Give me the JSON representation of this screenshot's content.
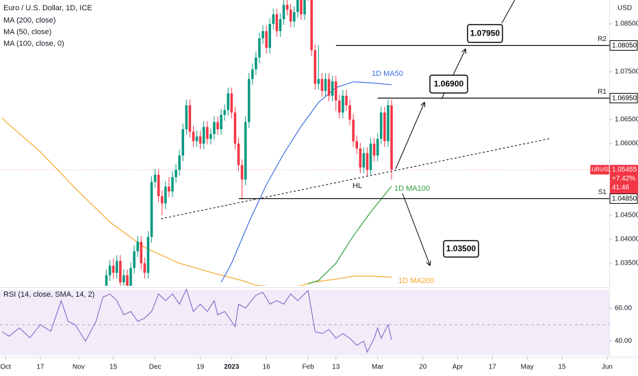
{
  "chart_data": [
    {
      "type": "candlestick",
      "title": "Euro / U.S. Dollar, 1D, ICE",
      "y_axis_label": "USD",
      "up_color": "#089981",
      "down_color": "#f23645",
      "x": [
        29,
        30,
        31,
        32,
        33,
        34,
        35,
        36,
        37,
        38,
        39,
        40,
        41,
        42,
        43,
        44,
        45,
        46,
        47,
        48,
        49,
        50,
        51,
        52,
        53,
        54,
        55,
        56,
        57,
        58,
        59,
        60,
        61,
        62,
        63,
        64,
        65,
        66,
        67,
        68,
        69,
        70,
        71,
        72,
        73,
        74,
        75,
        76,
        77,
        78,
        79,
        80,
        81,
        82,
        83,
        84,
        85,
        86,
        87,
        88,
        89,
        90,
        91,
        92,
        93,
        94,
        95,
        96,
        97,
        98,
        99,
        100,
        101,
        102,
        103,
        104,
        105,
        106,
        107,
        108,
        109,
        110,
        111
      ],
      "open": [
        1.03,
        1.0325,
        1.0345,
        1.033,
        1.0355,
        1.031,
        1.0325,
        1.03,
        1.034,
        1.0375,
        1.0395,
        1.035,
        1.033,
        1.0405,
        1.052,
        1.0535,
        1.049,
        1.0475,
        1.051,
        1.05,
        1.053,
        1.0545,
        1.0575,
        1.063,
        1.068,
        1.0625,
        1.0605,
        1.0615,
        1.06,
        1.0635,
        1.061,
        1.062,
        1.0645,
        1.063,
        1.066,
        1.067,
        1.0705,
        1.0665,
        1.06,
        1.0555,
        1.0525,
        1.0645,
        1.0735,
        1.0755,
        1.078,
        1.082,
        1.0835,
        1.08,
        1.085,
        1.087,
        1.0835,
        1.086,
        1.089,
        1.088,
        1.0855,
        1.0875,
        1.09,
        1.087,
        1.099,
        1.091,
        1.0795,
        1.0725,
        1.0735,
        1.071,
        1.0735,
        1.07,
        1.073,
        1.069,
        1.0665,
        1.07,
        1.068,
        1.065,
        1.0605,
        1.059,
        1.055,
        1.058,
        1.0545,
        1.06,
        1.0575,
        1.061,
        1.0665,
        1.0605,
        1.068
      ],
      "high": [
        1.0337,
        1.0357,
        1.036,
        1.0367,
        1.0367,
        1.0337,
        1.0337,
        1.0352,
        1.0387,
        1.0407,
        1.0407,
        1.0362,
        1.0417,
        1.0532,
        1.0547,
        1.0547,
        1.0502,
        1.0522,
        1.053,
        1.0542,
        1.0557,
        1.0587,
        1.0642,
        1.0692,
        1.0692,
        1.0637,
        1.0627,
        1.0627,
        1.0647,
        1.0647,
        1.0632,
        1.0657,
        1.0657,
        1.0672,
        1.0682,
        1.0717,
        1.0717,
        1.0677,
        1.0612,
        1.0567,
        1.0657,
        1.0747,
        1.0767,
        1.0792,
        1.0832,
        1.0847,
        1.0847,
        1.0862,
        1.0882,
        1.0882,
        1.0872,
        1.0902,
        1.0902,
        1.0892,
        1.0887,
        1.0912,
        1.0912,
        1.1002,
        1.103,
        1.0922,
        1.0807,
        1.0805,
        1.0747,
        1.0747,
        1.0747,
        1.0742,
        1.0742,
        1.0702,
        1.0712,
        1.0712,
        1.0692,
        1.0662,
        1.0617,
        1.0602,
        1.0592,
        1.0592,
        1.0612,
        1.0612,
        1.0622,
        1.0677,
        1.0677,
        1.0692,
        1.0692
      ],
      "low": [
        1.0288,
        1.0313,
        1.0318,
        1.0318,
        1.0298,
        1.0298,
        1.0288,
        1.0288,
        1.0328,
        1.0363,
        1.0338,
        1.0318,
        1.0318,
        1.0393,
        1.0508,
        1.0478,
        1.045,
        1.0463,
        1.0488,
        1.0488,
        1.0518,
        1.0533,
        1.0563,
        1.0618,
        1.0613,
        1.0593,
        1.0593,
        1.0588,
        1.0588,
        1.0598,
        1.0598,
        1.0608,
        1.0618,
        1.0618,
        1.0648,
        1.0658,
        1.0653,
        1.0588,
        1.0543,
        1.0483,
        1.0513,
        1.0633,
        1.0723,
        1.0743,
        1.0768,
        1.0808,
        1.0788,
        1.0788,
        1.0838,
        1.0823,
        1.0823,
        1.0848,
        1.0868,
        1.0843,
        1.0843,
        1.0863,
        1.0858,
        1.0858,
        1.0898,
        1.0783,
        1.0713,
        1.0713,
        1.0698,
        1.0698,
        1.0688,
        1.0688,
        1.0668,
        1.0653,
        1.0653,
        1.0668,
        1.0638,
        1.0593,
        1.0578,
        1.0538,
        1.0538,
        1.0533,
        1.0533,
        1.0563,
        1.0563,
        1.0598,
        1.0593,
        1.0593,
        1.0525
      ],
      "close": [
        1.0325,
        1.0345,
        1.033,
        1.0355,
        1.031,
        1.0325,
        1.03,
        1.034,
        1.0375,
        1.0395,
        1.035,
        1.033,
        1.0405,
        1.052,
        1.0535,
        1.049,
        1.0475,
        1.051,
        1.05,
        1.053,
        1.0545,
        1.0575,
        1.063,
        1.068,
        1.0625,
        1.0605,
        1.0615,
        1.06,
        1.0635,
        1.061,
        1.062,
        1.0645,
        1.063,
        1.066,
        1.067,
        1.0705,
        1.0665,
        1.06,
        1.0555,
        1.0525,
        1.0645,
        1.0735,
        1.0755,
        1.078,
        1.082,
        1.0835,
        1.08,
        1.085,
        1.087,
        1.0835,
        1.086,
        1.089,
        1.088,
        1.0855,
        1.0875,
        1.09,
        1.087,
        1.099,
        1.091,
        1.0795,
        1.0725,
        1.0735,
        1.071,
        1.0735,
        1.07,
        1.073,
        1.069,
        1.0665,
        1.07,
        1.068,
        1.065,
        1.0605,
        1.059,
        1.055,
        1.058,
        1.0545,
        1.06,
        1.0575,
        1.061,
        1.0665,
        1.0605,
        1.068,
        1.0546
      ],
      "moving_averages": [
        {
          "name": "MA (200, close)",
          "label": "1D MA200",
          "color": "#f5a623",
          "x": [
            -1,
            0,
            10,
            20,
            30,
            40,
            50,
            60,
            68,
            72,
            80,
            85,
            88,
            95,
            100,
            105,
            111
          ],
          "values": [
            1.0654,
            1.0646,
            1.0583,
            1.0507,
            1.0436,
            1.0383,
            1.035,
            1.0329,
            1.0314,
            1.0304,
            1.03,
            1.0303,
            1.031,
            1.0317,
            1.0323,
            1.0323,
            1.0321
          ]
        },
        {
          "name": "MA (50, close)",
          "label": "1D MA50",
          "color": "#3d6ee0",
          "x": [
            62,
            65,
            70,
            75,
            80,
            85,
            90,
            95,
            100,
            105,
            111
          ],
          "values": [
            1.031,
            1.035,
            1.0436,
            1.0514,
            1.0579,
            1.0636,
            1.0686,
            1.0717,
            1.0729,
            1.0727,
            1.0723
          ]
        },
        {
          "name": "MA (100, close, 0)",
          "label": "1D MA100",
          "color": "#2e9e3e",
          "x": [
            87,
            90,
            95,
            100,
            105,
            111
          ],
          "values": [
            1.0307,
            1.0314,
            1.035,
            1.0407,
            1.0457,
            1.0511
          ]
        }
      ],
      "levels": [
        {
          "name": "R2",
          "value": 1.0805,
          "label": "1.08050",
          "x_start": 95
        },
        {
          "name": "R1",
          "value": 1.0695,
          "label": "1.06950",
          "x_start": 107
        },
        {
          "name": "S1",
          "value": 1.0485,
          "label": "1.04850",
          "x_start": 67
        }
      ],
      "trendline": {
        "x": [
          44.7,
          156.9
        ],
        "values": [
          1.0443,
          1.0611
        ]
      },
      "current": {
        "symbol": "EURUSD",
        "value": 1.05455,
        "change": "+7.42%",
        "countdown": "41:46",
        "color": "#f23645"
      },
      "annotations": {
        "hl": "HL",
        "target_up_1": "1.06900",
        "target_up_2": "1.07950",
        "target_down": "1.03500"
      },
      "xlim": [
        -1.6,
        173.6
      ],
      "xticks": [
        {
          "value": 0,
          "label": "Oct"
        },
        {
          "value": 10,
          "label": "17"
        },
        {
          "value": 21,
          "label": "Nov"
        },
        {
          "value": 31,
          "label": "15"
        },
        {
          "value": 43,
          "label": "Dec"
        },
        {
          "value": 56,
          "label": "19"
        },
        {
          "value": 65,
          "label": "2023"
        },
        {
          "value": 75,
          "label": "16"
        },
        {
          "value": 87,
          "label": "Feb"
        },
        {
          "value": 95,
          "label": "13"
        },
        {
          "value": 107,
          "label": "Mar"
        },
        {
          "value": 120,
          "label": "20"
        },
        {
          "value": 130,
          "label": "Apr"
        },
        {
          "value": 140,
          "label": "17"
        },
        {
          "value": 150,
          "label": "May"
        },
        {
          "value": 160,
          "label": "15"
        },
        {
          "value": 173,
          "label": "Jun"
        }
      ],
      "ylim": [
        1.0303,
        1.09
      ],
      "yticks": [
        {
          "value": 1.085,
          "label": "1.08500"
        },
        {
          "value": 1.075,
          "label": "1.07500"
        },
        {
          "value": 1.065,
          "label": "1.06500"
        },
        {
          "value": 1.06,
          "label": "1.06000"
        },
        {
          "value": 1.045,
          "label": "1.04500"
        },
        {
          "value": 1.04,
          "label": "1.04000"
        },
        {
          "value": 1.035,
          "label": "1.03500"
        }
      ],
      "grid": false
    },
    {
      "type": "line",
      "title": "RSI (14, close, SMA, 14, 2)",
      "color": "#7e57c2",
      "x": [
        -1,
        1,
        4,
        7,
        10,
        13,
        16,
        18,
        20,
        23,
        26,
        28,
        30,
        32,
        34,
        36,
        38,
        40,
        42,
        44,
        46,
        48,
        50,
        52,
        54,
        56,
        58,
        60,
        61,
        63,
        65,
        66,
        67,
        69,
        72,
        74,
        76,
        78,
        80,
        82,
        84,
        87,
        89,
        91,
        93,
        95,
        97,
        99,
        101,
        103,
        104,
        106,
        107,
        108,
        110,
        111
      ],
      "values": [
        45.8,
        43,
        48,
        42,
        50,
        46,
        64.6,
        52,
        50,
        40,
        52,
        66.7,
        68.7,
        64.6,
        56,
        58,
        52,
        54,
        58,
        68.7,
        64.6,
        68.7,
        62.5,
        71.5,
        58,
        62.5,
        58,
        64.6,
        56,
        58,
        52,
        48.7,
        62.5,
        60,
        68,
        69.6,
        62.5,
        64.6,
        62.5,
        68.7,
        64.6,
        70.8,
        45.8,
        44.6,
        47,
        41.7,
        44.6,
        41.7,
        37.5,
        40,
        33.3,
        41.7,
        48,
        41.7,
        50,
        40.8
      ],
      "xlim": [
        -1.6,
        173.6
      ],
      "ylim": [
        31.25,
        72
      ],
      "yticks": [
        {
          "value": 60,
          "label": "60.00"
        },
        {
          "value": 40,
          "label": "40.00"
        }
      ]
    }
  ]
}
